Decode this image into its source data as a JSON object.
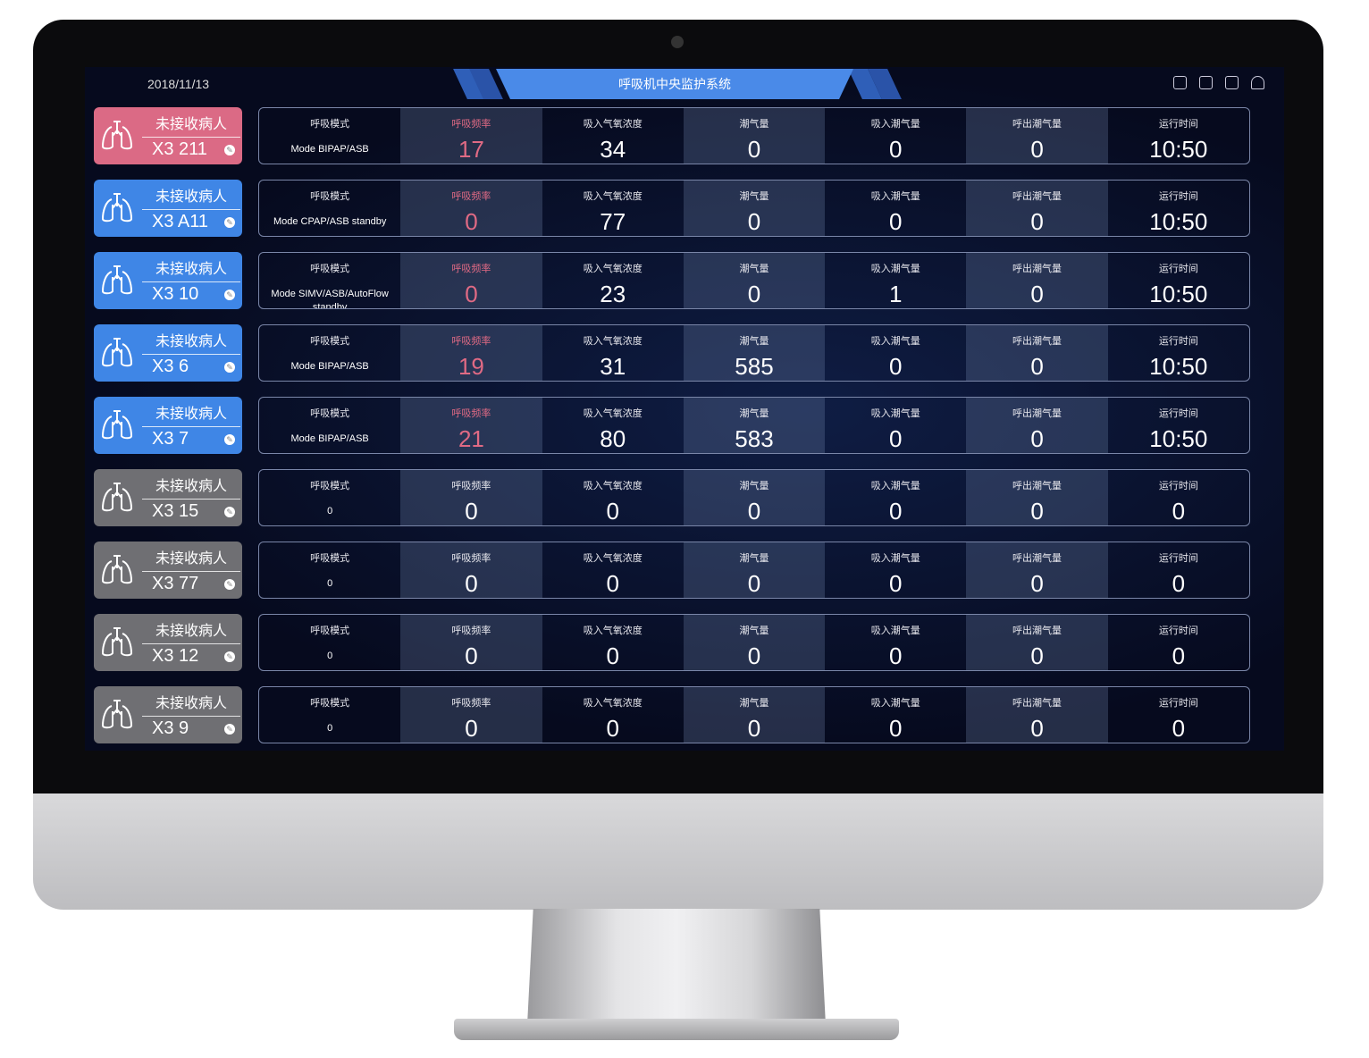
{
  "header": {
    "date": "2018/11/13",
    "title": "呼吸机中央监护系统",
    "icons": [
      "list-icon",
      "note-icon",
      "layout-icon",
      "user-icon"
    ]
  },
  "labels": [
    "呼吸模式",
    "呼吸频率",
    "吸入气氧浓度",
    "潮气量",
    "吸入潮气量",
    "呼出潮气量",
    "运行时间"
  ],
  "colors": {
    "pink": "#db6a85",
    "blue": "#3f86e6",
    "gray": "#6f6f73",
    "accent": "#4a8ae8",
    "alert": "#e06a84"
  },
  "rows": [
    {
      "status": "未接收病人",
      "bed": "X3 211",
      "color": "pink",
      "mode": "Mode BIPAP/ASB",
      "rate": "17",
      "rate_alert": true,
      "fio2": "34",
      "vt": "0",
      "vti": "0",
      "vte": "0",
      "time": "10:50"
    },
    {
      "status": "未接收病人",
      "bed": "X3 A11",
      "color": "blue",
      "mode": "Mode CPAP/ASB standby",
      "rate": "0",
      "rate_alert": true,
      "fio2": "77",
      "vt": "0",
      "vti": "0",
      "vte": "0",
      "time": "10:50"
    },
    {
      "status": "未接收病人",
      "bed": "X3 10",
      "color": "blue",
      "mode": "Mode SIMV/ASB/AutoFlow standby",
      "rate": "0",
      "rate_alert": true,
      "fio2": "23",
      "vt": "0",
      "vti": "1",
      "vte": "0",
      "time": "10:50"
    },
    {
      "status": "未接收病人",
      "bed": "X3 6",
      "color": "blue",
      "mode": "Mode BIPAP/ASB",
      "rate": "19",
      "rate_alert": true,
      "fio2": "31",
      "vt": "585",
      "vti": "0",
      "vte": "0",
      "time": "10:50"
    },
    {
      "status": "未接收病人",
      "bed": "X3 7",
      "color": "blue",
      "mode": "Mode BIPAP/ASB",
      "rate": "21",
      "rate_alert": true,
      "fio2": "80",
      "vt": "583",
      "vti": "0",
      "vte": "0",
      "time": "10:50"
    },
    {
      "status": "未接收病人",
      "bed": "X3 15",
      "color": "gray",
      "mode": "0",
      "rate": "0",
      "rate_alert": false,
      "fio2": "0",
      "vt": "0",
      "vti": "0",
      "vte": "0",
      "time": "0"
    },
    {
      "status": "未接收病人",
      "bed": "X3 77",
      "color": "gray",
      "mode": "0",
      "rate": "0",
      "rate_alert": false,
      "fio2": "0",
      "vt": "0",
      "vti": "0",
      "vte": "0",
      "time": "0"
    },
    {
      "status": "未接收病人",
      "bed": "X3 12",
      "color": "gray",
      "mode": "0",
      "rate": "0",
      "rate_alert": false,
      "fio2": "0",
      "vt": "0",
      "vti": "0",
      "vte": "0",
      "time": "0"
    },
    {
      "status": "未接收病人",
      "bed": "X3 9",
      "color": "gray",
      "mode": "0",
      "rate": "0",
      "rate_alert": false,
      "fio2": "0",
      "vt": "0",
      "vti": "0",
      "vte": "0",
      "time": "0"
    }
  ]
}
